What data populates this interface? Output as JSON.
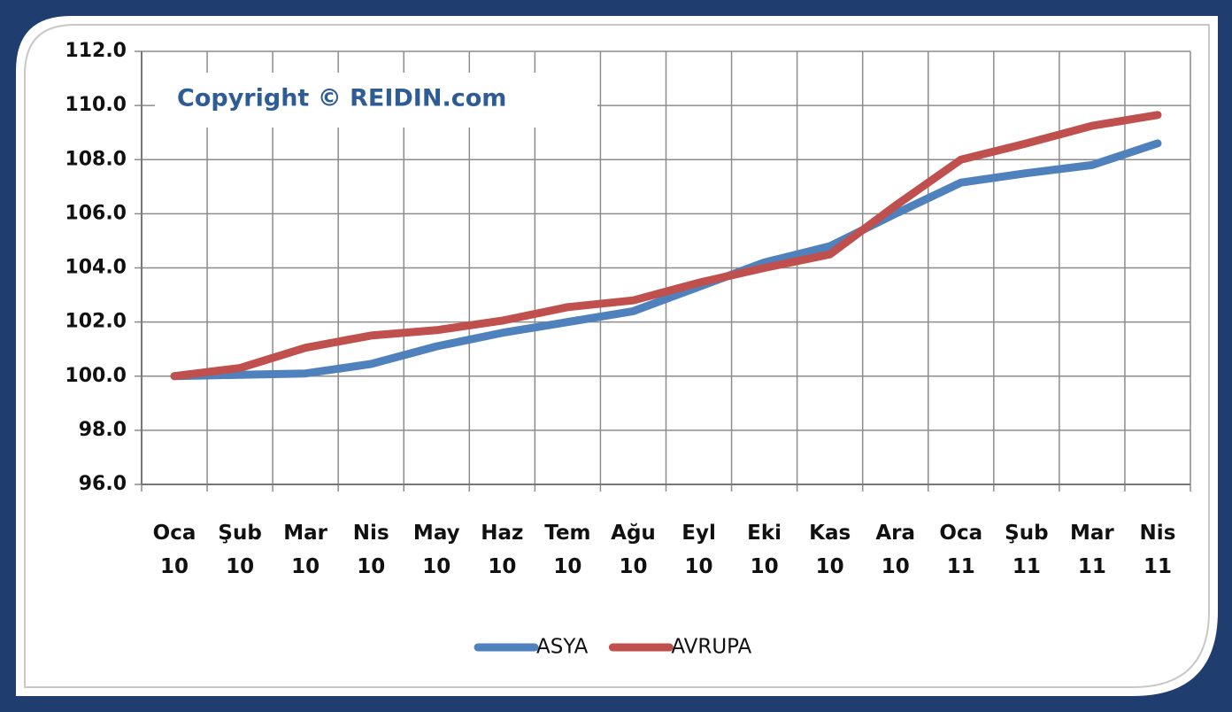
{
  "chart_data": {
    "type": "line",
    "annotation": "Copyright © REIDIN.com",
    "categories": [
      "Oca 10",
      "Şub 10",
      "Mar 10",
      "Nis 10",
      "May 10",
      "Haz 10",
      "Tem 10",
      "Ağu 10",
      "Eyl 10",
      "Eki 10",
      "Kas 10",
      "Ara 10",
      "Oca 11",
      "Şub 11",
      "Mar 11",
      "Nis 11"
    ],
    "series": [
      {
        "name": "ASYA",
        "color": "#4f81bd",
        "values": [
          100.0,
          100.05,
          100.1,
          100.45,
          101.1,
          101.6,
          102.0,
          102.4,
          103.3,
          104.2,
          104.8,
          106.0,
          107.15,
          107.5,
          107.8,
          108.6
        ]
      },
      {
        "name": "AVRUPA",
        "color": "#c0504d",
        "values": [
          100.0,
          100.3,
          101.05,
          101.5,
          101.7,
          102.05,
          102.55,
          102.8,
          103.45,
          104.0,
          104.5,
          106.3,
          108.0,
          108.6,
          109.25,
          109.65
        ]
      }
    ],
    "ylim": [
      96,
      112
    ],
    "yticks": [
      {
        "value": 96,
        "label": "96.0"
      },
      {
        "value": 98,
        "label": "98.0"
      },
      {
        "value": 100,
        "label": "100.0"
      },
      {
        "value": 102,
        "label": "102.0"
      },
      {
        "value": 104,
        "label": "104.0"
      },
      {
        "value": 106,
        "label": "106.0"
      },
      {
        "value": 108,
        "label": "108.0"
      },
      {
        "value": 110,
        "label": "110.0"
      },
      {
        "value": 112,
        "label": "112.0"
      }
    ],
    "grid": true,
    "legend": "bottom"
  }
}
